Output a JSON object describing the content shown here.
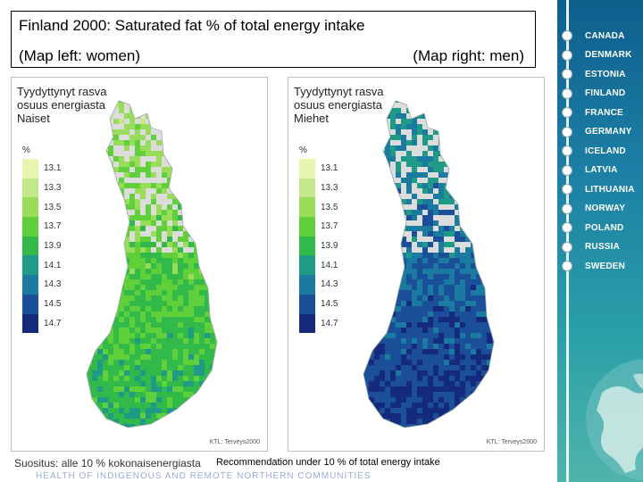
{
  "header": {
    "title": "Finland 2000: Saturated fat % of total energy intake",
    "left_label": "(Map left: women)",
    "right_label": "(Map right: men)"
  },
  "maps": [
    {
      "title_lines": [
        "Tyydyttynyt rasva",
        "osuus energiasta",
        "Naiset"
      ],
      "unit": "%",
      "credit": "KTL: Terveys2000",
      "legend": [
        "13.1",
        "13.3",
        "13.5",
        "13.7",
        "13.9",
        "14.1",
        "14.3",
        "14.5",
        "14.7"
      ]
    },
    {
      "title_lines": [
        "Tyydyttynyt rasva",
        "osuus energiasta",
        "Miehet"
      ],
      "unit": "%",
      "credit": "KTL: Terveys2000",
      "legend": [
        "13.1",
        "13.3",
        "13.5",
        "13.7",
        "13.9",
        "14.1",
        "14.3",
        "14.5",
        "14.7"
      ]
    }
  ],
  "legend_colors": [
    "#e6f5b0",
    "#c2e88a",
    "#98dc5a",
    "#5fcf3a",
    "#31b94a",
    "#1f9a86",
    "#1a7aa0",
    "#1b4f9a",
    "#152a7c"
  ],
  "footer": {
    "finnish": "Suositus: alle 10 % kokonaisenergiasta",
    "english": "Recommendation under 10 % of total energy intake",
    "strip": "HEALTH OF INDIGENOUS AND REMOTE NORTHERN COMMUNITIES"
  },
  "sidebar": {
    "countries": [
      "CANADA",
      "DENMARK",
      "ESTONIA",
      "FINLAND",
      "FRANCE",
      "GERMANY",
      "ICELAND",
      "LATVIA",
      "LITHUANIA",
      "NORWAY",
      "POLAND",
      "RUSSIA",
      "SWEDEN"
    ]
  }
}
